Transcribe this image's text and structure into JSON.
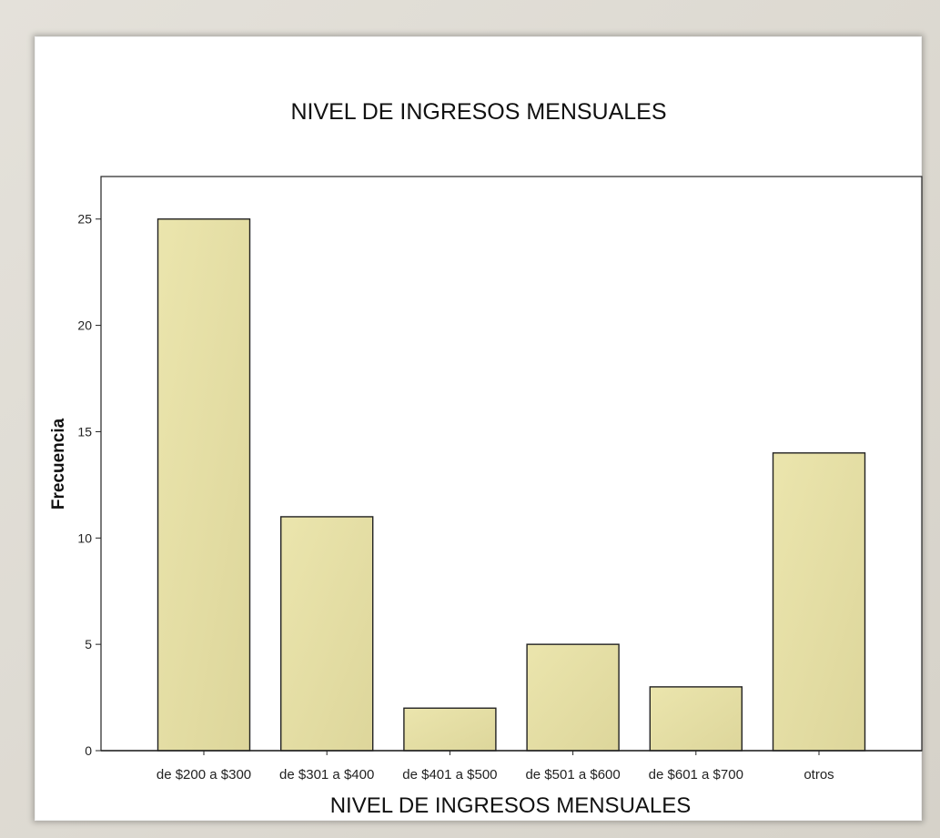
{
  "chart_data": {
    "type": "bar",
    "title": "NIVEL DE INGRESOS MENSUALES",
    "xlabel": "NIVEL DE INGRESOS MENSUALES",
    "ylabel": "Frecuencia",
    "categories": [
      "de $200 a $300",
      "de $301 a $400",
      "de $401 a $500",
      "de $501 a $600",
      "de $601 a $700",
      "otros"
    ],
    "values": [
      25,
      11,
      2,
      5,
      3,
      14
    ],
    "yticks": [
      "0",
      "5",
      "10",
      "15",
      "20",
      "25"
    ],
    "ylim": [
      0,
      27
    ],
    "grid": false,
    "bar_color": "#e6e0a6",
    "bar_edge_color": "#222222"
  }
}
